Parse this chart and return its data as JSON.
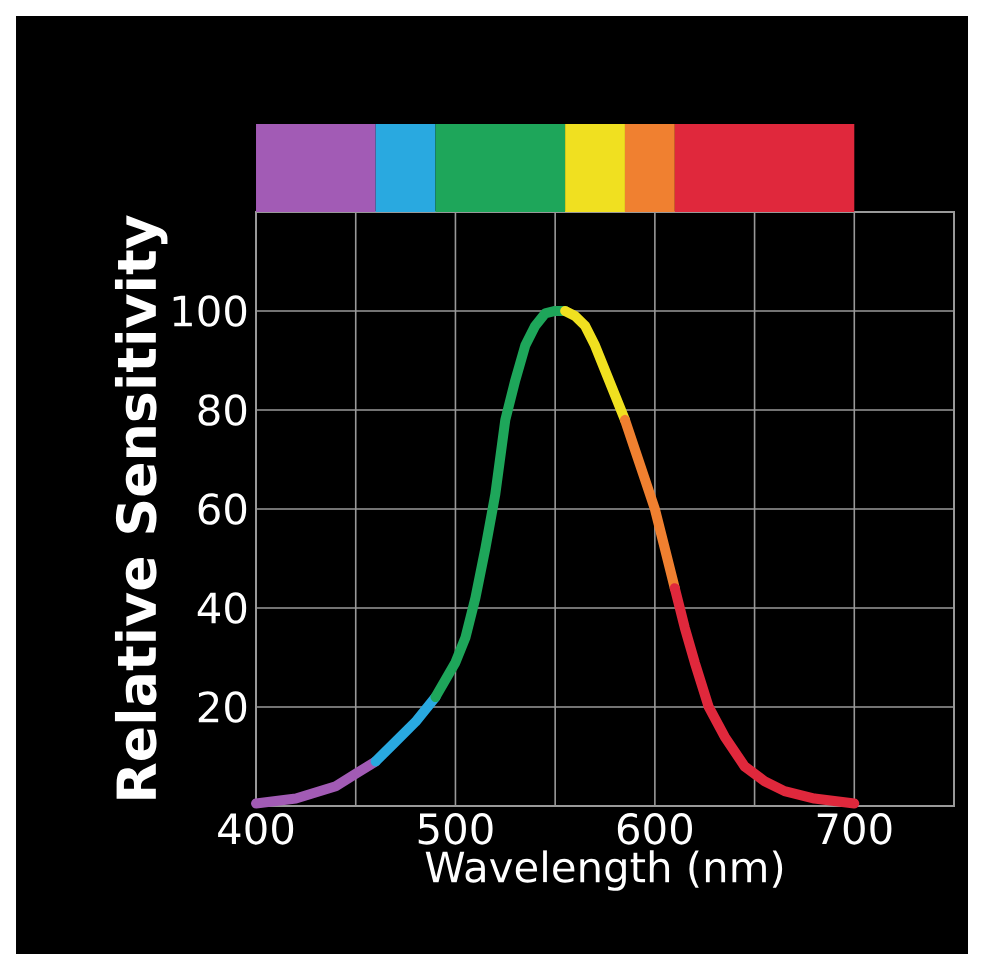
{
  "chart_data": {
    "type": "line",
    "xlabel": "Wavelength (nm)",
    "ylabel": "Relative Sensitivity",
    "xlim": [
      400,
      750
    ],
    "ylim": [
      0,
      120
    ],
    "xticks": [
      400,
      {
        "value": 450,
        "label": null
      },
      500,
      {
        "value": 550,
        "label": null
      },
      600,
      {
        "value": 650,
        "label": null
      },
      700
    ],
    "yticks": [
      20,
      40,
      60,
      80,
      100
    ],
    "grid": true,
    "marker": "none",
    "line_style": "solid",
    "series": [
      {
        "color": "#a25bb5",
        "x": [
          400,
          420,
          440,
          450,
          460
        ],
        "values": [
          0.5,
          1.5,
          4,
          6.5,
          9
        ]
      },
      {
        "color": "#29a9e0",
        "x": [
          460,
          470,
          480,
          490
        ],
        "values": [
          9,
          13,
          17,
          22
        ]
      },
      {
        "color": "#1ea65a",
        "x": [
          490,
          500,
          505,
          510,
          515,
          520,
          525,
          530,
          535,
          540,
          545,
          550,
          555
        ],
        "values": [
          22,
          29,
          34,
          42,
          52,
          63,
          78,
          86,
          93,
          97,
          99.5,
          100,
          100
        ]
      },
      {
        "color": "#f0e020",
        "x": [
          555,
          560,
          565,
          570,
          575,
          580,
          585
        ],
        "values": [
          100,
          99,
          97,
          93,
          88,
          83,
          78
        ]
      },
      {
        "color": "#f08030",
        "x": [
          585,
          590,
          595,
          600,
          605,
          610
        ],
        "values": [
          78,
          72,
          66,
          60,
          52,
          44
        ]
      },
      {
        "color": "#e0283c",
        "x": [
          610,
          615,
          620,
          627,
          635,
          645,
          655,
          665,
          680,
          700
        ],
        "values": [
          44,
          36,
          29,
          20,
          14,
          8,
          5,
          3,
          1.5,
          0.5
        ]
      }
    ]
  }
}
